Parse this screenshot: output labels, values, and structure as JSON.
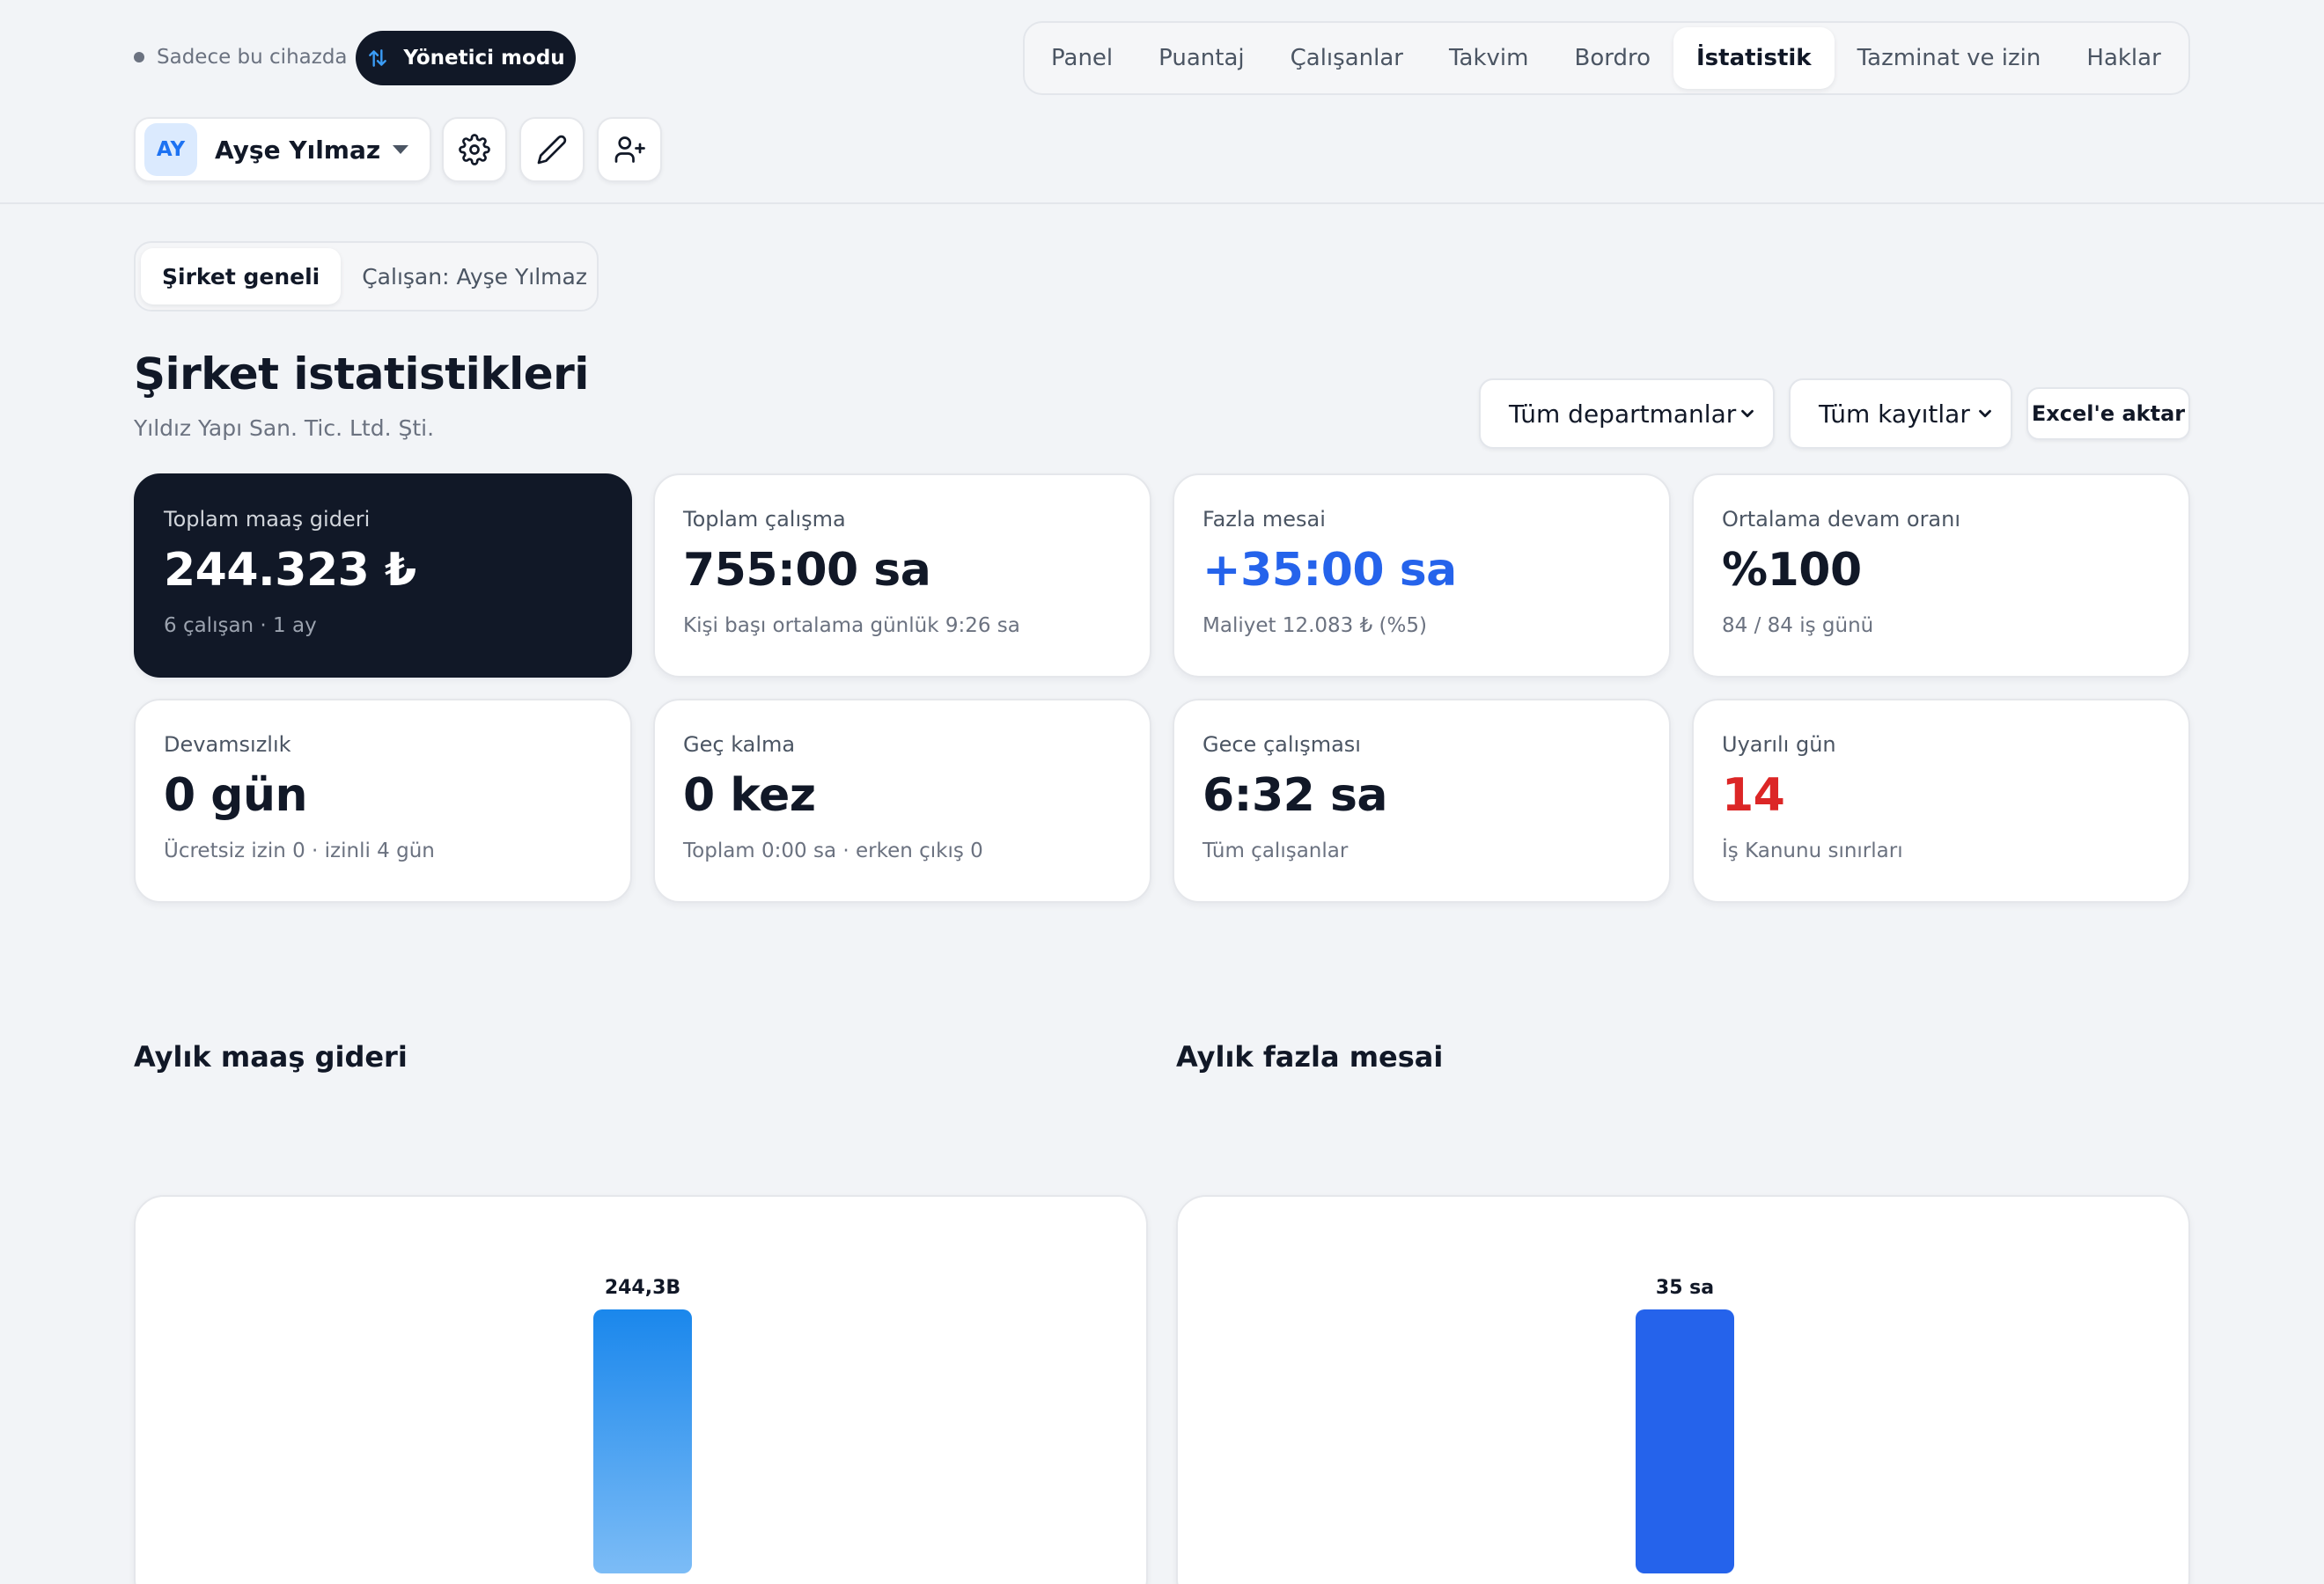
{
  "header": {
    "device_note": "Sadece bu cihazda",
    "admin_mode": "Yönetici modu",
    "nav": [
      {
        "label": "Panel",
        "active": false
      },
      {
        "label": "Puantaj",
        "active": false
      },
      {
        "label": "Çalışanlar",
        "active": false
      },
      {
        "label": "Takvim",
        "active": false
      },
      {
        "label": "Bordro",
        "active": false
      },
      {
        "label": "İstatistik",
        "active": true
      },
      {
        "label": "Tazminat ve izin",
        "active": false
      },
      {
        "label": "Haklar",
        "active": false
      }
    ],
    "user": {
      "initials": "AY",
      "name": "Ayşe Yılmaz"
    },
    "icons": [
      "gear-icon",
      "pencil-icon",
      "user-plus-icon"
    ]
  },
  "scope_tabs": [
    {
      "label": "Şirket geneli",
      "active": true
    },
    {
      "label": "Çalışan: Ayşe Yılmaz",
      "active": false
    }
  ],
  "page": {
    "title": "Şirket istatistikleri",
    "subtitle": "Yıldız Yapı San. Tic. Ltd. Şti."
  },
  "filters": {
    "department": "Tüm departmanlar",
    "records": "Tüm kayıtlar",
    "export": "Excel'e aktar"
  },
  "stats": [
    {
      "label": "Toplam maaş gideri",
      "value": "244.323 ₺",
      "sub": "6 çalışan · 1 ay"
    },
    {
      "label": "Toplam çalışma",
      "value": "755:00 sa",
      "sub": "Kişi başı ortalama günlük 9:26 sa"
    },
    {
      "label": "Fazla mesai",
      "value": "+35:00 sa",
      "sub": "Maliyet 12.083 ₺ (%5)"
    },
    {
      "label": "Ortalama devam oranı",
      "value": "%100",
      "sub": "84 / 84 iş günü"
    },
    {
      "label": "Devamsızlık",
      "value": "0 gün",
      "sub": "Ücretsiz izin 0 · izinli 4 gün"
    },
    {
      "label": "Geç kalma",
      "value": "0 kez",
      "sub": "Toplam 0:00 sa · erken çıkış 0"
    },
    {
      "label": "Gece çalışması",
      "value": "6:32 sa",
      "sub": "Tüm çalışanlar"
    },
    {
      "label": "Uyarılı gün",
      "value": "14",
      "sub": "İş Kanunu sınırları"
    }
  ],
  "colors": {
    "dark_card": "#111827",
    "accent_blue": "#2563eb",
    "warning_red": "#dc2626",
    "bar_gradient_top": "#1a87ec",
    "bar_gradient_bottom": "#7cbcf6"
  },
  "charts": {
    "salary_title": "Aylık maaş gideri",
    "overtime_title": "Aylık fazla mesai"
  },
  "chart_data": [
    {
      "type": "bar",
      "title": "Aylık maaş gideri",
      "categories": [
        ""
      ],
      "values": [
        244.3
      ],
      "value_labels": [
        "244,3B"
      ]
    },
    {
      "type": "bar",
      "title": "Aylık fazla mesai",
      "categories": [
        ""
      ],
      "values": [
        35
      ],
      "value_labels": [
        "35 sa"
      ]
    }
  ]
}
